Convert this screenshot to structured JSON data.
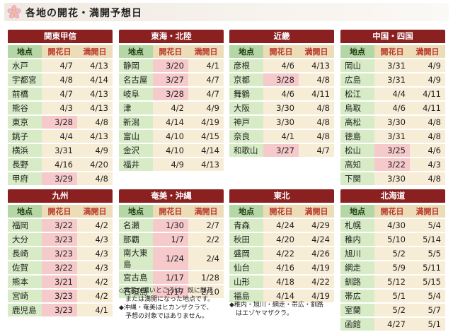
{
  "header": {
    "title": "各地の開花・満開予想日",
    "icon": "sakura-icon"
  },
  "columns": [
    "地点",
    "開花日",
    "満開日"
  ],
  "regions": [
    {
      "name": "関東甲信",
      "rows": [
        {
          "place": "水戸",
          "bloom": "4/7",
          "full": "4/13",
          "hl": false
        },
        {
          "place": "宇都宮",
          "bloom": "4/8",
          "full": "4/14",
          "hl": false
        },
        {
          "place": "前橋",
          "bloom": "4/7",
          "full": "4/13",
          "hl": false
        },
        {
          "place": "熊谷",
          "bloom": "4/3",
          "full": "4/13",
          "hl": false
        },
        {
          "place": "東京",
          "bloom": "3/28",
          "full": "4/8",
          "hl": true
        },
        {
          "place": "銚子",
          "bloom": "4/4",
          "full": "4/13",
          "hl": false
        },
        {
          "place": "横浜",
          "bloom": "3/31",
          "full": "4/9",
          "hl": false
        },
        {
          "place": "長野",
          "bloom": "4/16",
          "full": "4/20",
          "hl": false
        },
        {
          "place": "甲府",
          "bloom": "3/29",
          "full": "4/8",
          "hl": true
        }
      ]
    },
    {
      "name": "東海・北陸",
      "rows": [
        {
          "place": "静岡",
          "bloom": "3/20",
          "full": "4/1",
          "hl": true
        },
        {
          "place": "名古屋",
          "bloom": "3/27",
          "full": "4/7",
          "hl": true
        },
        {
          "place": "岐阜",
          "bloom": "3/28",
          "full": "4/7",
          "hl": true
        },
        {
          "place": "津",
          "bloom": "4/2",
          "full": "4/9",
          "hl": false
        },
        {
          "place": "新潟",
          "bloom": "4/14",
          "full": "4/19",
          "hl": false
        },
        {
          "place": "富山",
          "bloom": "4/10",
          "full": "4/15",
          "hl": false
        },
        {
          "place": "金沢",
          "bloom": "4/10",
          "full": "4/14",
          "hl": false
        },
        {
          "place": "福井",
          "bloom": "4/9",
          "full": "4/13",
          "hl": false
        }
      ]
    },
    {
      "name": "近畿",
      "rows": [
        {
          "place": "彦根",
          "bloom": "4/6",
          "full": "4/13",
          "hl": false
        },
        {
          "place": "京都",
          "bloom": "3/28",
          "full": "4/8",
          "hl": true
        },
        {
          "place": "舞鶴",
          "bloom": "4/6",
          "full": "4/11",
          "hl": false
        },
        {
          "place": "大阪",
          "bloom": "3/30",
          "full": "4/8",
          "hl": false
        },
        {
          "place": "神戸",
          "bloom": "3/30",
          "full": "4/8",
          "hl": false
        },
        {
          "place": "奈良",
          "bloom": "4/1",
          "full": "4/8",
          "hl": false
        },
        {
          "place": "和歌山",
          "bloom": "3/27",
          "full": "4/7",
          "hl": true
        }
      ]
    },
    {
      "name": "中国・四国",
      "rows": [
        {
          "place": "岡山",
          "bloom": "3/31",
          "full": "4/9",
          "hl": false
        },
        {
          "place": "広島",
          "bloom": "3/31",
          "full": "4/9",
          "hl": false
        },
        {
          "place": "松江",
          "bloom": "4/4",
          "full": "4/11",
          "hl": false
        },
        {
          "place": "鳥取",
          "bloom": "4/6",
          "full": "4/11",
          "hl": false
        },
        {
          "place": "高松",
          "bloom": "3/30",
          "full": "4/8",
          "hl": false
        },
        {
          "place": "徳島",
          "bloom": "3/31",
          "full": "4/8",
          "hl": false
        },
        {
          "place": "松山",
          "bloom": "3/25",
          "full": "4/6",
          "hl": true
        },
        {
          "place": "高知",
          "bloom": "3/22",
          "full": "4/3",
          "hl": true
        },
        {
          "place": "下関",
          "bloom": "3/30",
          "full": "4/8",
          "hl": false
        }
      ]
    },
    {
      "name": "九州",
      "rows": [
        {
          "place": "福岡",
          "bloom": "3/22",
          "full": "4/2",
          "hl": true
        },
        {
          "place": "大分",
          "bloom": "3/23",
          "full": "4/3",
          "hl": true
        },
        {
          "place": "長崎",
          "bloom": "3/23",
          "full": "4/3",
          "hl": true
        },
        {
          "place": "佐賀",
          "bloom": "3/22",
          "full": "4/3",
          "hl": true
        },
        {
          "place": "熊本",
          "bloom": "3/21",
          "full": "4/2",
          "hl": true
        },
        {
          "place": "宮崎",
          "bloom": "3/23",
          "full": "4/2",
          "hl": true
        },
        {
          "place": "鹿児島",
          "bloom": "3/23",
          "full": "4/1",
          "hl": true
        }
      ]
    },
    {
      "name": "奄美・沖縄",
      "rows": [
        {
          "place": "名瀬",
          "bloom": "1/30",
          "full": "2/7",
          "hl": true
        },
        {
          "place": "那覇",
          "bloom": "1/7",
          "full": "2/2",
          "hl": true
        },
        {
          "place": "南大東島",
          "bloom": "1/24",
          "full": "2/4",
          "hl": true
        },
        {
          "place": "宮古島",
          "bloom": "1/17",
          "full": "1/28",
          "hl": true
        },
        {
          "place": "石垣島",
          "bloom": "1/17",
          "full": "2/10",
          "hl": true
        }
      ]
    },
    {
      "name": "東北",
      "rows": [
        {
          "place": "青森",
          "bloom": "4/24",
          "full": "4/29",
          "hl": false
        },
        {
          "place": "秋田",
          "bloom": "4/20",
          "full": "4/24",
          "hl": false
        },
        {
          "place": "盛岡",
          "bloom": "4/22",
          "full": "4/26",
          "hl": false
        },
        {
          "place": "仙台",
          "bloom": "4/16",
          "full": "4/19",
          "hl": false
        },
        {
          "place": "山形",
          "bloom": "4/18",
          "full": "4/22",
          "hl": false
        },
        {
          "place": "福島",
          "bloom": "4/14",
          "full": "4/19",
          "hl": false
        }
      ]
    },
    {
      "name": "北海道",
      "rows": [
        {
          "place": "札幌",
          "bloom": "4/30",
          "full": "5/4",
          "hl": false
        },
        {
          "place": "稚内",
          "bloom": "5/10",
          "full": "5/14",
          "hl": false
        },
        {
          "place": "旭川",
          "bloom": "5/2",
          "full": "5/5",
          "hl": false
        },
        {
          "place": "網走",
          "bloom": "5/9",
          "full": "5/11",
          "hl": false
        },
        {
          "place": "釧路",
          "bloom": "5/12",
          "full": "5/15",
          "hl": false
        },
        {
          "place": "帯広",
          "bloom": "5/1",
          "full": "5/4",
          "hl": false
        },
        {
          "place": "室蘭",
          "bloom": "5/2",
          "full": "5/7",
          "hl": false
        },
        {
          "place": "函館",
          "bloom": "4/27",
          "full": "5/1",
          "hl": false
        }
      ]
    }
  ],
  "notes": {
    "okinawa": "◇背景が濃いところは、既に開花\n　または満開になった地点です。\n◆沖縄・奄美はヒカンザクラで、\n　予想の対象ではありません。",
    "tohoku": "◆稚内・旭川・網走・帯広・釧路\n　はエゾヤマザクラ。"
  },
  "colors": {
    "header_bg": "#8b2020",
    "highlight": "#f6c9cb",
    "place_bg": "#d7ecc6",
    "value_bg": "#f7ecd6"
  }
}
